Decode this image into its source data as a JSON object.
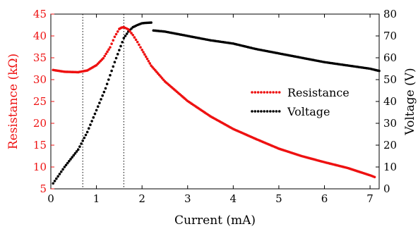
{
  "chart_data": {
    "type": "scatter",
    "xlabel": "Current (mA)",
    "ylabel_left": "Resistance (kΩ)",
    "ylabel_right": "Voltage (V)",
    "xlim": [
      0,
      7.2
    ],
    "ylim_left": [
      5,
      45
    ],
    "ylim_right": [
      0,
      80
    ],
    "x_ticks": [
      "0",
      "1",
      "2",
      "3",
      "4",
      "5",
      "6",
      "7"
    ],
    "y_left_ticks": [
      "5",
      "10",
      "15",
      "20",
      "25",
      "30",
      "35",
      "40",
      "45"
    ],
    "y_right_ticks": [
      "0",
      "10",
      "20",
      "30",
      "40",
      "50",
      "60",
      "70",
      "80"
    ],
    "vertical_lines_x": [
      0.7,
      1.6
    ],
    "legend": "center-right",
    "colors": {
      "resistance": "#ee1111",
      "voltage": "#000000",
      "left_axis": "#ee1111",
      "right_axis": "#000000"
    },
    "series": [
      {
        "name": "Resistance",
        "axis": "left",
        "x": [
          0.05,
          0.3,
          0.6,
          0.8,
          1.0,
          1.15,
          1.3,
          1.4,
          1.5,
          1.55,
          1.6,
          1.7,
          1.8,
          1.9,
          2.0,
          2.2,
          2.5,
          3.0,
          3.5,
          4.0,
          4.5,
          5.0,
          5.5,
          6.0,
          6.5,
          7.0,
          7.1
        ],
        "y": [
          32.2,
          31.8,
          31.7,
          32.1,
          33.3,
          34.9,
          37.4,
          39.8,
          41.6,
          41.9,
          42.0,
          41.5,
          40.2,
          38.6,
          36.8,
          33.2,
          29.6,
          25.1,
          21.6,
          18.7,
          16.4,
          14.2,
          12.5,
          11.1,
          9.8,
          8.1,
          7.7
        ]
      },
      {
        "name": "Voltage",
        "axis": "right",
        "x": [
          0.05,
          0.3,
          0.6,
          0.8,
          1.0,
          1.2,
          1.4,
          1.6,
          1.7,
          1.8,
          1.9,
          2.0,
          2.1,
          2.2,
          2.25,
          2.5,
          3.0,
          3.5,
          4.0,
          4.5,
          5.0,
          5.5,
          6.0,
          6.5,
          7.0,
          7.2
        ],
        "y": [
          2.5,
          10,
          18,
          26,
          36,
          46,
          58,
          69,
          72,
          74,
          75,
          75.8,
          76.0,
          76.1,
          72.5,
          72,
          70,
          68,
          66.5,
          64,
          62,
          60,
          58,
          56.5,
          55,
          54
        ]
      }
    ]
  }
}
